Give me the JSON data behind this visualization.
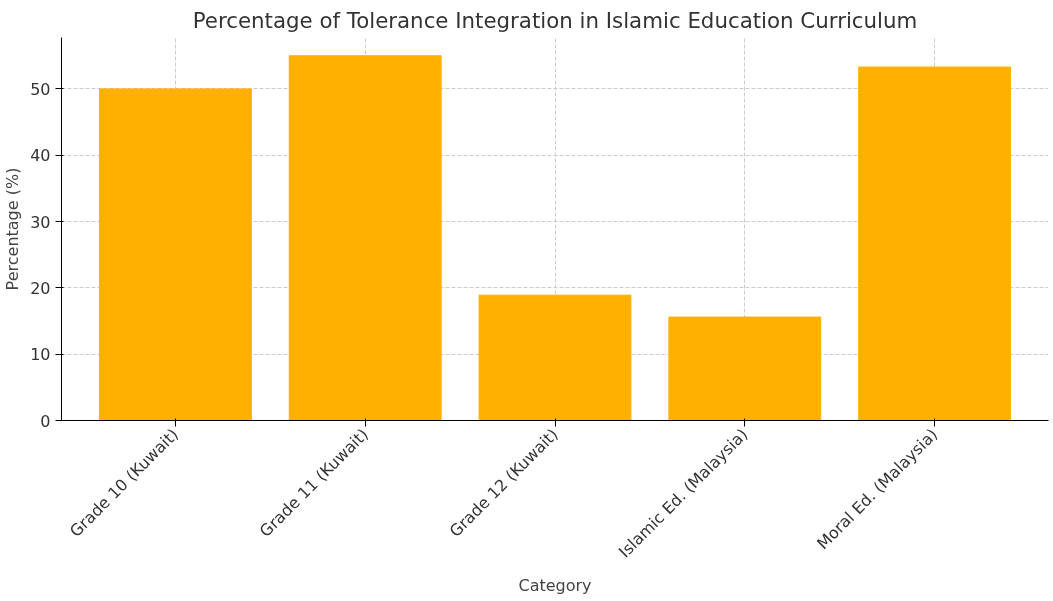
{
  "chart_data": {
    "type": "bar",
    "title": "Percentage of Tolerance Integration in Islamic Education Curriculum",
    "xlabel": "Category",
    "ylabel": "Percentage (%)",
    "categories": [
      "Grade 10 (Kuwait)",
      "Grade 11 (Kuwait)",
      "Grade 12 (Kuwait)",
      "Islamic Ed. (Malaysia)",
      "Moral Ed. (Malaysia)"
    ],
    "values": [
      50,
      55,
      18.9,
      15.6,
      53.3
    ],
    "color": "#ffb000",
    "ylim": [
      0,
      57.75
    ],
    "yticks": [
      0,
      10,
      20,
      30,
      40,
      50
    ],
    "grid": true
  }
}
